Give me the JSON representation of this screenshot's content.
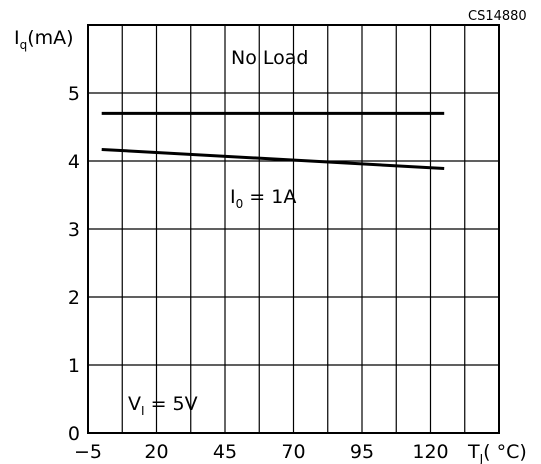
{
  "chart_data": {
    "type": "line",
    "figure_code": "CS14880",
    "ylabel": {
      "main": "I",
      "sub": "q",
      "unit": "(mA)"
    },
    "xlabel": {
      "main": "T",
      "sub": "J",
      "unit": "( °C)"
    },
    "x_ticks": [
      -5,
      20,
      45,
      70,
      95,
      120
    ],
    "x_tick_labels": [
      "−5",
      "20",
      "45",
      "70",
      "95",
      "120"
    ],
    "y_ticks": [
      0,
      1,
      2,
      3,
      4,
      5
    ],
    "y_tick_labels": [
      "0",
      "1",
      "2",
      "3",
      "4",
      "5"
    ],
    "xlim": [
      -5,
      145
    ],
    "ylim": [
      0,
      6
    ],
    "grid": true,
    "series": [
      {
        "name": "No Load",
        "x": [
          0,
          125
        ],
        "y": [
          4.7,
          4.7
        ],
        "color": "#000000"
      },
      {
        "name": "I0 = 1A",
        "x": [
          0,
          125
        ],
        "y": [
          4.17,
          3.89
        ],
        "color": "#000000"
      }
    ],
    "annotations": {
      "no_load": "No  Load",
      "io_main": "I",
      "io_sub": "0",
      "io_rest": " = 1A",
      "vi_main": "V",
      "vi_sub": "I",
      "vi_rest": " = 5V"
    }
  }
}
